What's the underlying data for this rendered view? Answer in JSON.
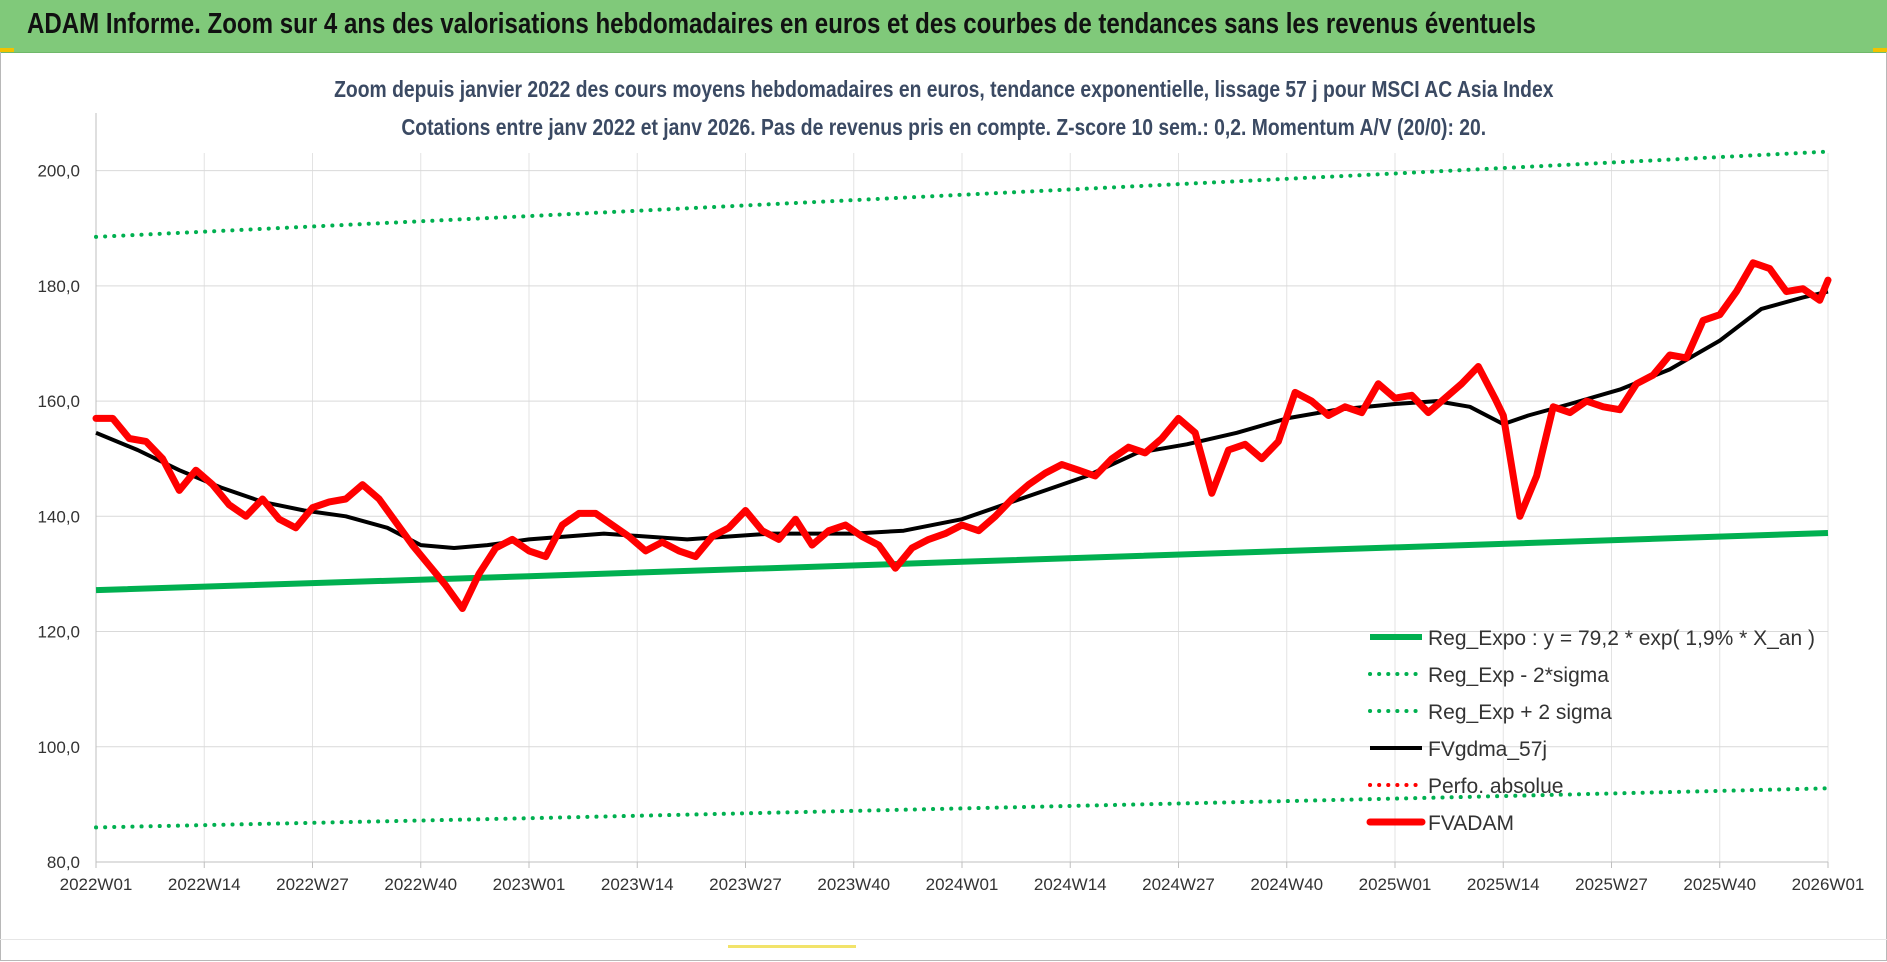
{
  "header": {
    "title": "ADAM Informe. Zoom sur 4 ans des valorisations hebdomadaires en euros et des courbes de tendances sans les revenus éventuels"
  },
  "chart_data": {
    "type": "line",
    "title_line1": "Zoom depuis janvier 2022 des cours moyens hebdomadaires en euros, tendance exponentielle, lissage 57 j pour MSCI AC Asia Index",
    "title_line2": "Cotations entre janv 2022 et janv 2026. Pas de revenus pris en compte. Z-score 10 sem.: 0,2. Momentum A/V (20/0): 20.",
    "x_tick_labels": [
      "2022W01",
      "2022W14",
      "2022W27",
      "2022W40",
      "2023W01",
      "2023W14",
      "2023W27",
      "2023W40",
      "2024W01",
      "2024W14",
      "2024W27",
      "2024W40",
      "2025W01",
      "2025W14",
      "2025W27",
      "2025W40",
      "2026W01"
    ],
    "y_tick_labels": [
      "80,0",
      "100,0",
      "120,0",
      "140,0",
      "160,0",
      "180,0",
      "200,0"
    ],
    "ylim": [
      80,
      210
    ],
    "grid": true,
    "legend_position": "bottom-right",
    "x_start": "2022W01",
    "x_end": "2026W01",
    "series": [
      {
        "name": "Reg_Expo : y = 79,2 * exp( 1,9% * X_an )",
        "color": "#00b050",
        "style": "solid",
        "x": [
          "2022W01",
          "2023W01",
          "2024W01",
          "2025W01",
          "2026W01"
        ],
        "values": [
          127.2,
          129.6,
          132.1,
          134.6,
          137.1
        ]
      },
      {
        "name": "Reg_Exp - 2*sigma",
        "color": "#00b050",
        "style": "dotted",
        "x": [
          "2022W01",
          "2023W01",
          "2024W01",
          "2025W01",
          "2026W01"
        ],
        "values": [
          86.0,
          87.6,
          89.3,
          91.0,
          92.8
        ]
      },
      {
        "name": "Reg_Exp + 2 sigma",
        "color": "#00b050",
        "style": "dotted",
        "x": [
          "2022W01",
          "2023W01",
          "2024W01",
          "2025W01",
          "2026W01"
        ],
        "values": [
          188.5,
          192.1,
          195.8,
          199.5,
          203.3
        ]
      },
      {
        "name": "FVgdma_57j",
        "color": "#000000",
        "style": "solid",
        "x": [
          "2022W01",
          "2022W06",
          "2022W11",
          "2022W16",
          "2022W21",
          "2022W26",
          "2022W31",
          "2022W36",
          "2022W40",
          "2022W44",
          "2022W48",
          "2023W01",
          "2023W10",
          "2023W20",
          "2023W30",
          "2023W40",
          "2023W46",
          "2024W01",
          "2024W08",
          "2024W16",
          "2024W22",
          "2024W28",
          "2024W34",
          "2024W40",
          "2024W46",
          "2025W01",
          "2025W06",
          "2025W10",
          "2025W14",
          "2025W17",
          "2025W22",
          "2025W28",
          "2025W34",
          "2025W40",
          "2025W45",
          "2025W50",
          "2026W01"
        ],
        "values": [
          154.5,
          151.5,
          148.0,
          145.0,
          142.5,
          141.0,
          140.0,
          138.0,
          135.0,
          134.5,
          135.0,
          136.0,
          137.0,
          136.0,
          137.0,
          137.0,
          137.5,
          139.5,
          143.0,
          147.0,
          151.0,
          152.5,
          154.5,
          157.0,
          158.5,
          159.5,
          160.0,
          159.0,
          156.0,
          157.5,
          159.5,
          162.0,
          165.5,
          170.5,
          176.0,
          178.0,
          179.0
        ]
      },
      {
        "name": "Perfo. absolue",
        "color": "#ff0000",
        "style": "dotted",
        "x": [],
        "values": []
      },
      {
        "name": "FVADAM",
        "color": "#ff0000",
        "style": "solid",
        "x": [
          "2022W01",
          "2022W03",
          "2022W05",
          "2022W07",
          "2022W09",
          "2022W11",
          "2022W13",
          "2022W15",
          "2022W17",
          "2022W19",
          "2022W21",
          "2022W23",
          "2022W25",
          "2022W27",
          "2022W29",
          "2022W31",
          "2022W33",
          "2022W35",
          "2022W37",
          "2022W39",
          "2022W41",
          "2022W43",
          "2022W45",
          "2022W47",
          "2022W49",
          "2022W51",
          "2023W01",
          "2023W03",
          "2023W05",
          "2023W07",
          "2023W09",
          "2023W11",
          "2023W13",
          "2023W15",
          "2023W17",
          "2023W19",
          "2023W21",
          "2023W23",
          "2023W25",
          "2023W27",
          "2023W29",
          "2023W31",
          "2023W33",
          "2023W35",
          "2023W37",
          "2023W39",
          "2023W41",
          "2023W43",
          "2023W45",
          "2023W47",
          "2023W49",
          "2023W51",
          "2024W01",
          "2024W03",
          "2024W05",
          "2024W07",
          "2024W09",
          "2024W11",
          "2024W13",
          "2024W15",
          "2024W17",
          "2024W19",
          "2024W21",
          "2024W23",
          "2024W25",
          "2024W27",
          "2024W29",
          "2024W31",
          "2024W33",
          "2024W35",
          "2024W37",
          "2024W39",
          "2024W41",
          "2024W43",
          "2024W45",
          "2024W47",
          "2024W49",
          "2024W51",
          "2025W01",
          "2025W03",
          "2025W05",
          "2025W07",
          "2025W09",
          "2025W11",
          "2025W13",
          "2025W14",
          "2025W16",
          "2025W18",
          "2025W20",
          "2025W22",
          "2025W24",
          "2025W26",
          "2025W28",
          "2025W30",
          "2025W32",
          "2025W34",
          "2025W36",
          "2025W38",
          "2025W40",
          "2025W42",
          "2025W44",
          "2025W46",
          "2025W48",
          "2025W50",
          "2025W52",
          "2026W01"
        ],
        "values": [
          157.0,
          157.0,
          153.5,
          153.0,
          150.0,
          144.5,
          148.0,
          145.5,
          142.0,
          140.0,
          143.0,
          139.5,
          138.0,
          141.5,
          142.5,
          143.0,
          145.5,
          143.0,
          139.0,
          135.0,
          131.5,
          128.0,
          124.0,
          130.0,
          134.5,
          136.0,
          134.0,
          133.0,
          138.5,
          140.5,
          140.5,
          138.5,
          136.5,
          134.0,
          135.5,
          134.0,
          133.0,
          136.5,
          138.0,
          141.0,
          137.5,
          136.0,
          139.5,
          135.0,
          137.5,
          138.5,
          136.5,
          135.0,
          131.0,
          134.5,
          136.0,
          137.0,
          138.5,
          137.5,
          140.0,
          143.0,
          145.5,
          147.5,
          149.0,
          148.0,
          147.0,
          150.0,
          152.0,
          151.0,
          153.5,
          157.0,
          154.5,
          144.0,
          151.5,
          152.5,
          150.0,
          153.0,
          161.5,
          160.0,
          157.5,
          159.0,
          158.0,
          163.0,
          160.5,
          161.0,
          158.0,
          160.5,
          163.0,
          166.0,
          160.5,
          157.5,
          140.0,
          147.0,
          159.0,
          158.0,
          160.0,
          159.0,
          158.5,
          163.0,
          164.5,
          168.0,
          167.5,
          174.0,
          175.0,
          179.0,
          184.0,
          183.0,
          179.0,
          179.5,
          177.5,
          181.0
        ]
      }
    ]
  }
}
